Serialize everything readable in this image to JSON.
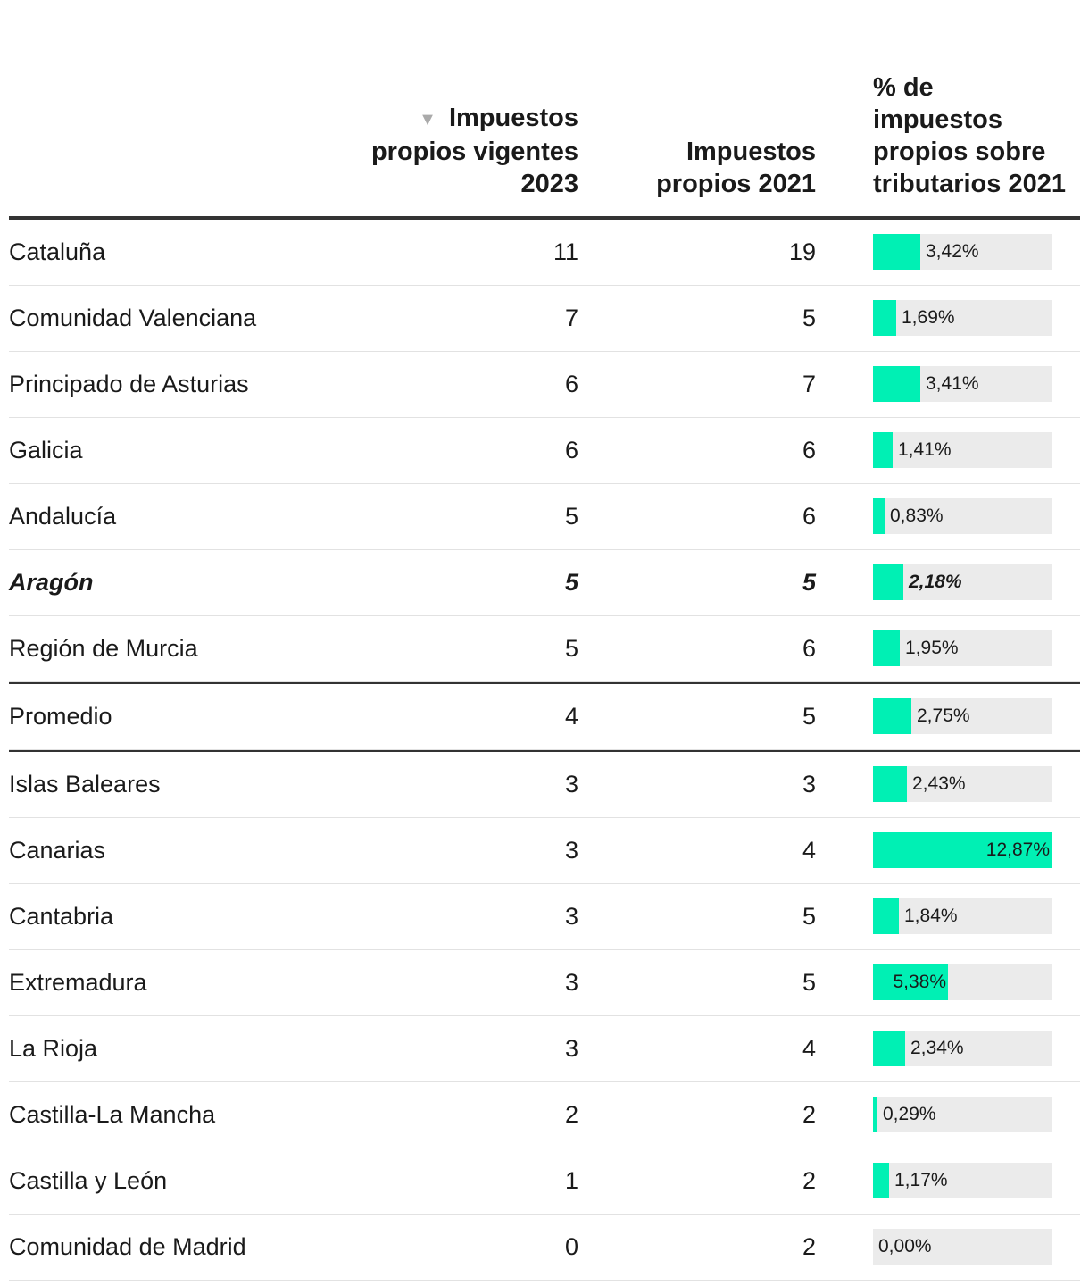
{
  "colors": {
    "bar": "#00f0b4",
    "bar_background": "#ebebeb",
    "rule": "#333333",
    "row_border": "#e2e2e2"
  },
  "chart_data": {
    "type": "table",
    "columns": [
      "",
      "Impuestos propios vigentes 2023",
      "Impuestos propios 2021",
      "% de impuestos propios sobre tributarios 2021"
    ],
    "sorted_by": "Impuestos propios vigentes 2023",
    "sort_icon": "sort-descending-icon",
    "bar_max": 12.87,
    "rows": [
      {
        "name": "Cataluña",
        "v2023": "11",
        "v2021": "19",
        "pct": 3.42,
        "pct_label": "3,42%"
      },
      {
        "name": "Comunidad Valenciana",
        "v2023": "7",
        "v2021": "5",
        "pct": 1.69,
        "pct_label": "1,69%"
      },
      {
        "name": "Principado de Asturias",
        "v2023": "6",
        "v2021": "7",
        "pct": 3.41,
        "pct_label": "3,41%"
      },
      {
        "name": "Galicia",
        "v2023": "6",
        "v2021": "6",
        "pct": 1.41,
        "pct_label": "1,41%"
      },
      {
        "name": "Andalucía",
        "v2023": "5",
        "v2021": "6",
        "pct": 0.83,
        "pct_label": "0,83%"
      },
      {
        "name": "Aragón",
        "v2023": "5",
        "v2021": "5",
        "pct": 2.18,
        "pct_label": "2,18%",
        "highlight": true
      },
      {
        "name": "Región de Murcia",
        "v2023": "5",
        "v2021": "6",
        "pct": 1.95,
        "pct_label": "1,95%"
      },
      {
        "name": "Promedio",
        "v2023": "4",
        "v2021": "5",
        "pct": 2.75,
        "pct_label": "2,75%",
        "separator": true
      },
      {
        "name": "Islas Baleares",
        "v2023": "3",
        "v2021": "3",
        "pct": 2.43,
        "pct_label": "2,43%",
        "separator": true
      },
      {
        "name": "Canarias",
        "v2023": "3",
        "v2021": "4",
        "pct": 12.87,
        "pct_label": "12,87%"
      },
      {
        "name": "Cantabria",
        "v2023": "3",
        "v2021": "5",
        "pct": 1.84,
        "pct_label": "1,84%"
      },
      {
        "name": "Extremadura",
        "v2023": "3",
        "v2021": "5",
        "pct": 5.38,
        "pct_label": "5,38%"
      },
      {
        "name": "La Rioja",
        "v2023": "3",
        "v2021": "4",
        "pct": 2.34,
        "pct_label": "2,34%"
      },
      {
        "name": "Castilla-La Mancha",
        "v2023": "2",
        "v2021": "2",
        "pct": 0.29,
        "pct_label": "0,29%"
      },
      {
        "name": "Castilla y León",
        "v2023": "1",
        "v2021": "2",
        "pct": 1.17,
        "pct_label": "1,17%"
      },
      {
        "name": "Comunidad de Madrid",
        "v2023": "0",
        "v2021": "2",
        "pct": 0.0,
        "pct_label": "0,00%"
      }
    ]
  }
}
